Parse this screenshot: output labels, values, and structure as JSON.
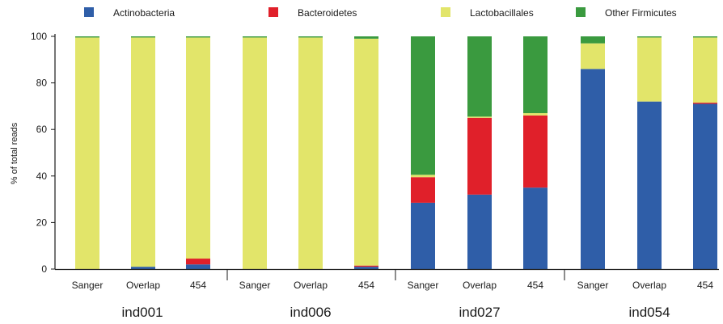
{
  "chart_data": {
    "type": "bar",
    "stacked": true,
    "ylabel": "% of total reads",
    "ylim": [
      0,
      100
    ],
    "yticks": [
      0,
      20,
      40,
      60,
      80,
      100
    ],
    "grid": false,
    "legend_position": "top",
    "groups": [
      "ind001",
      "ind006",
      "ind027",
      "ind054"
    ],
    "categories": [
      "Sanger",
      "Overlap",
      "454",
      "Sanger",
      "Overlap",
      "454",
      "Sanger",
      "Overlap",
      "454",
      "Sanger",
      "Overlap",
      "454"
    ],
    "series": [
      {
        "name": "Actinobacteria",
        "color": "#2f5ea8",
        "values": [
          0,
          1,
          2,
          0,
          0,
          1,
          28.5,
          32,
          35,
          86,
          72,
          71
        ]
      },
      {
        "name": "Bacteroidetes",
        "color": "#e0202a",
        "values": [
          0,
          0,
          2.5,
          0,
          0,
          0.5,
          11,
          33,
          31,
          0,
          0,
          0.5
        ]
      },
      {
        "name": "Lactobacillales",
        "color": "#e2e56a",
        "values": [
          99.5,
          98.5,
          95,
          99.5,
          99.5,
          97.5,
          1,
          0.5,
          1,
          11,
          27.5,
          28
        ]
      },
      {
        "name": "Other Firmicutes",
        "color": "#3a9a3f",
        "values": [
          0.5,
          0.5,
          0.5,
          0.5,
          0.5,
          1,
          59.5,
          34.5,
          33,
          3,
          0.5,
          0.5
        ]
      }
    ]
  }
}
